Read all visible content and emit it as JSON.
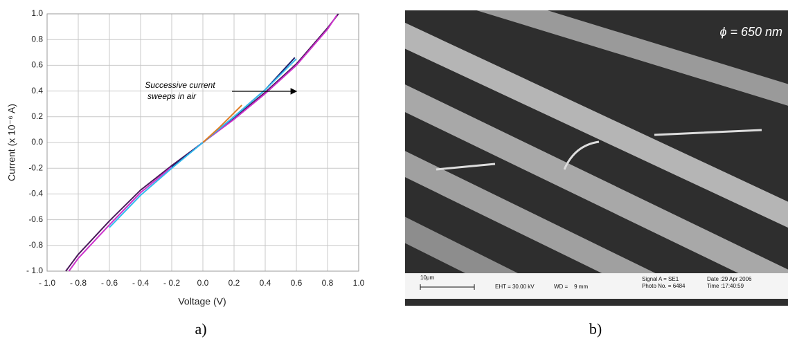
{
  "chart_data": {
    "type": "line",
    "xlabel": "Voltage (V)",
    "ylabel": "Current (x 10⁻⁶ A)",
    "annotation": [
      "Successive current",
      "sweeps in air"
    ],
    "xlim": [
      -1.0,
      1.0
    ],
    "ylim": [
      -1.0,
      1.0
    ],
    "grid": true,
    "xticks": [
      {
        "value": -1.0,
        "label": "- 1.0"
      },
      {
        "value": -0.8,
        "label": "- 0.8"
      },
      {
        "value": -0.6,
        "label": "- 0.6"
      },
      {
        "value": -0.4,
        "label": "- 0.4"
      },
      {
        "value": -0.2,
        "label": "- 0.2"
      },
      {
        "value": 0,
        "label": "0.0"
      },
      0.2,
      0.4,
      0.6,
      0.8,
      {
        "value": 1.0,
        "label": "1.0"
      }
    ],
    "yticks": [
      {
        "value": -1.0,
        "label": "- 1.0"
      },
      -0.8,
      -0.6,
      -0.4,
      -0.2,
      {
        "value": 0,
        "label": "0.0"
      },
      0.2,
      0.4,
      0.6,
      0.8,
      {
        "value": 1.0,
        "label": "1.0"
      }
    ],
    "series": [
      {
        "color": "#4a1a5a",
        "x": [
          -0.88,
          -0.8,
          -0.6,
          -0.4,
          -0.2,
          0,
          0.2,
          0.4,
          0.6,
          0.8,
          0.87
        ],
        "values": [
          -1.0,
          -0.87,
          -0.61,
          -0.37,
          -0.18,
          0,
          0.19,
          0.39,
          0.61,
          0.89,
          1.0
        ]
      },
      {
        "color": "#cc33cc",
        "x": [
          -0.86,
          -0.8,
          -0.6,
          -0.4,
          -0.2,
          0,
          0.2,
          0.4,
          0.6,
          0.8,
          0.86
        ],
        "values": [
          -1.0,
          -0.9,
          -0.64,
          -0.39,
          -0.19,
          0,
          0.18,
          0.38,
          0.6,
          0.88,
          0.99
        ]
      },
      {
        "color": "#1a1a6a",
        "x": [
          -0.2,
          0,
          0.2,
          0.4,
          0.59
        ],
        "values": [
          -0.19,
          0,
          0.2,
          0.41,
          0.66
        ]
      },
      {
        "color": "#33bbee",
        "x": [
          -0.6,
          -0.4,
          -0.2,
          0,
          0.2,
          0.4,
          0.6
        ],
        "values": [
          -0.66,
          -0.41,
          -0.2,
          0,
          0.2,
          0.41,
          0.65
        ]
      },
      {
        "color": "#e07a20",
        "x": [
          0,
          0.1,
          0.25
        ],
        "values": [
          0,
          0.11,
          0.29
        ]
      }
    ]
  },
  "sem_image": {
    "label": "ϕ = 650 nm",
    "scale": "10μm",
    "eht": "EHT = 30.00 kV",
    "wd": "WD =    9 mm",
    "signal": "Signal A = SE1",
    "photo": "Photo No. = 6484",
    "date": "Date :29 Apr 2006",
    "time": "Time :17:40:59"
  },
  "captions": [
    "a)",
    "b)"
  ]
}
